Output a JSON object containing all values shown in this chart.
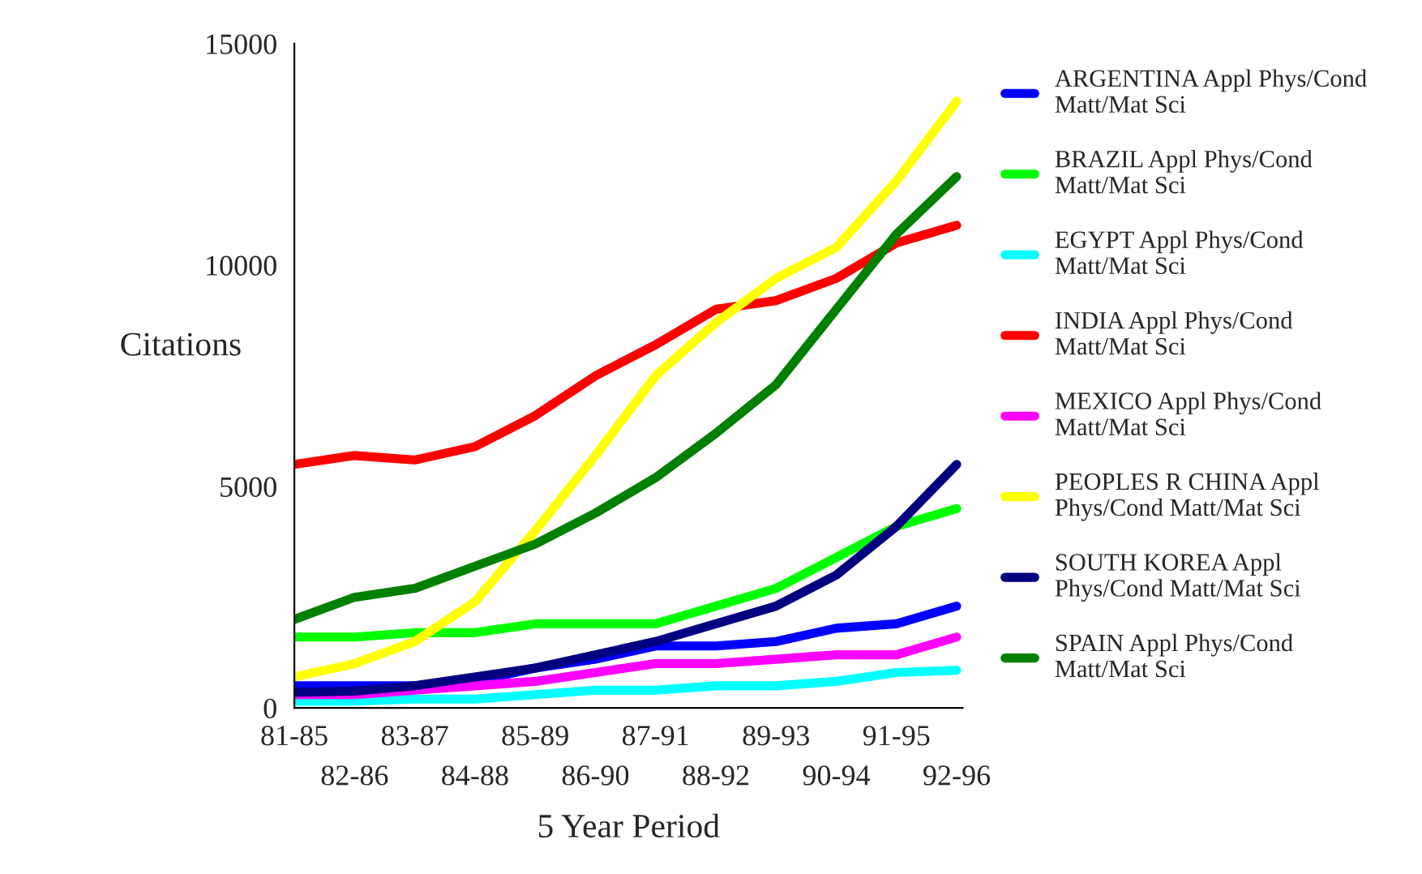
{
  "chart_data": {
    "type": "line",
    "xlabel": "5 Year Period",
    "ylabel": "Citations",
    "categories": [
      "81-85",
      "82-86",
      "83-87",
      "84-88",
      "85-89",
      "86-90",
      "87-91",
      "88-92",
      "89-93",
      "90-94",
      "91-95",
      "92-96"
    ],
    "ylim": [
      0,
      15000
    ],
    "yticks": [
      0,
      5000,
      10000,
      15000
    ],
    "grid": false,
    "legend": "right",
    "marker": "none",
    "line_style": "solid",
    "series": [
      {
        "name": "ARGENTINA Appl Phys/Cond Matt/Mat Sci",
        "color": "#0000ff",
        "values": [
          500,
          500,
          500,
          600,
          900,
          1100,
          1400,
          1400,
          1500,
          1800,
          1900,
          2300
        ]
      },
      {
        "name": "BRAZIL Appl Phys/Cond Matt/Mat Sci",
        "color": "#00ff00",
        "values": [
          1600,
          1600,
          1700,
          1700,
          1900,
          1900,
          1900,
          2300,
          2700,
          3400,
          4100,
          4500
        ]
      },
      {
        "name": "EGYPT Appl Phys/Cond Matt/Mat Sci",
        "color": "#00ffff",
        "values": [
          150,
          150,
          200,
          200,
          300,
          400,
          400,
          500,
          500,
          600,
          800,
          850
        ]
      },
      {
        "name": "INDIA Appl Phys/Cond Matt/Mat Sci",
        "color": "#ff0000",
        "values": [
          5500,
          5700,
          5600,
          5900,
          6600,
          7500,
          8200,
          9000,
          9200,
          9700,
          10500,
          10900
        ]
      },
      {
        "name": "MEXICO Appl Phys/Cond Matt/Mat Sci",
        "color": "#ff00ff",
        "values": [
          300,
          300,
          400,
          500,
          600,
          800,
          1000,
          1000,
          1100,
          1200,
          1200,
          1600
        ]
      },
      {
        "name": "PEOPLES R CHINA Appl Phys/Cond Matt/Mat Sci",
        "color": "#ffff00",
        "values": [
          700,
          1000,
          1500,
          2400,
          4000,
          5700,
          7500,
          8700,
          9700,
          10400,
          11900,
          13700
        ]
      },
      {
        "name": "SOUTH KOREA Appl Phys/Cond Matt/Mat Sci",
        "color": "#000080",
        "values": [
          350,
          380,
          500,
          700,
          900,
          1200,
          1500,
          1900,
          2300,
          3000,
          4100,
          5500
        ]
      },
      {
        "name": "SPAIN Appl Phys/Cond Matt/Mat Sci",
        "color": "#008000",
        "values": [
          2000,
          2500,
          2700,
          3200,
          3700,
          4400,
          5200,
          6200,
          7300,
          9000,
          10700,
          12000
        ]
      }
    ]
  }
}
